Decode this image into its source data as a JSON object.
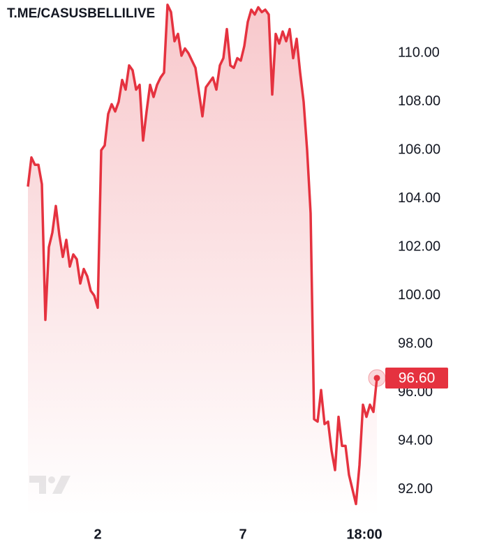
{
  "chart_data": {
    "type": "area",
    "watermark": "T.ME/CASUSBELLILIVE",
    "color": "#e5323f",
    "x": [
      0,
      1,
      2,
      3,
      4,
      5,
      6,
      7,
      8,
      9,
      10,
      11,
      12,
      13,
      14,
      15,
      16,
      17,
      18,
      19,
      20,
      21,
      22,
      23,
      24,
      25,
      26,
      27,
      28,
      29,
      30,
      31,
      32,
      33,
      34,
      35,
      36,
      37,
      38,
      39,
      40,
      41,
      42,
      43,
      44,
      45,
      46,
      47,
      48,
      49,
      50,
      51,
      52,
      53,
      54,
      55,
      56,
      57,
      58,
      59,
      60,
      61,
      62,
      63,
      64,
      65,
      66,
      67,
      68,
      69,
      70,
      71,
      72,
      73,
      74,
      75,
      76,
      77,
      78,
      79,
      80,
      81,
      82,
      83,
      84,
      85,
      86,
      87,
      88,
      89,
      90,
      91,
      92,
      93,
      94,
      95,
      96,
      97,
      98,
      99,
      100
    ],
    "values": [
      104.5,
      105.7,
      105.4,
      105.4,
      104.6,
      99.0,
      102.0,
      102.6,
      103.7,
      102.5,
      101.6,
      102.3,
      101.2,
      101.7,
      101.5,
      100.5,
      101.1,
      100.8,
      100.2,
      100.0,
      99.5,
      106.0,
      106.2,
      107.5,
      107.9,
      107.6,
      108.0,
      108.9,
      108.5,
      109.5,
      109.3,
      108.5,
      108.7,
      106.4,
      107.6,
      108.7,
      108.2,
      108.7,
      109.0,
      109.2,
      112.0,
      111.7,
      110.5,
      110.8,
      109.9,
      110.2,
      110.0,
      109.7,
      109.4,
      108.4,
      107.4,
      108.6,
      108.8,
      109.0,
      108.5,
      109.5,
      109.8,
      111.0,
      109.5,
      109.4,
      109.8,
      109.7,
      110.3,
      111.3,
      111.8,
      111.6,
      111.9,
      111.7,
      111.8,
      111.6,
      108.3,
      110.8,
      110.4,
      110.9,
      110.5,
      111.0,
      109.8,
      110.6,
      109.2,
      108.0,
      106.0,
      103.4,
      94.9,
      94.8,
      96.1,
      94.7,
      94.8,
      93.6,
      92.8,
      95.0,
      93.8,
      93.8,
      92.6,
      92.0,
      91.4,
      93.0,
      95.5,
      95.0,
      95.5,
      95.2,
      96.6
    ],
    "last_price": {
      "value": 96.6,
      "label": "96.60"
    },
    "xlim": [
      0,
      100
    ],
    "xticks": [
      {
        "value": 20,
        "label": "2"
      },
      {
        "value": 61.6,
        "label": "7"
      },
      {
        "value": 96.4,
        "label": "18:00"
      }
    ],
    "ylim": [
      90.9,
      112.2
    ],
    "yticks": [
      {
        "value": 92,
        "label": "92.00"
      },
      {
        "value": 94,
        "label": "94.00"
      },
      {
        "value": 96,
        "label": "96.00"
      },
      {
        "value": 98,
        "label": "98.00"
      },
      {
        "value": 100,
        "label": "100.00"
      },
      {
        "value": 102,
        "label": "102.00"
      },
      {
        "value": 104,
        "label": "104.00"
      },
      {
        "value": 106,
        "label": "106.00"
      },
      {
        "value": 108,
        "label": "108.00"
      },
      {
        "value": 110,
        "label": "110.00"
      }
    ]
  }
}
